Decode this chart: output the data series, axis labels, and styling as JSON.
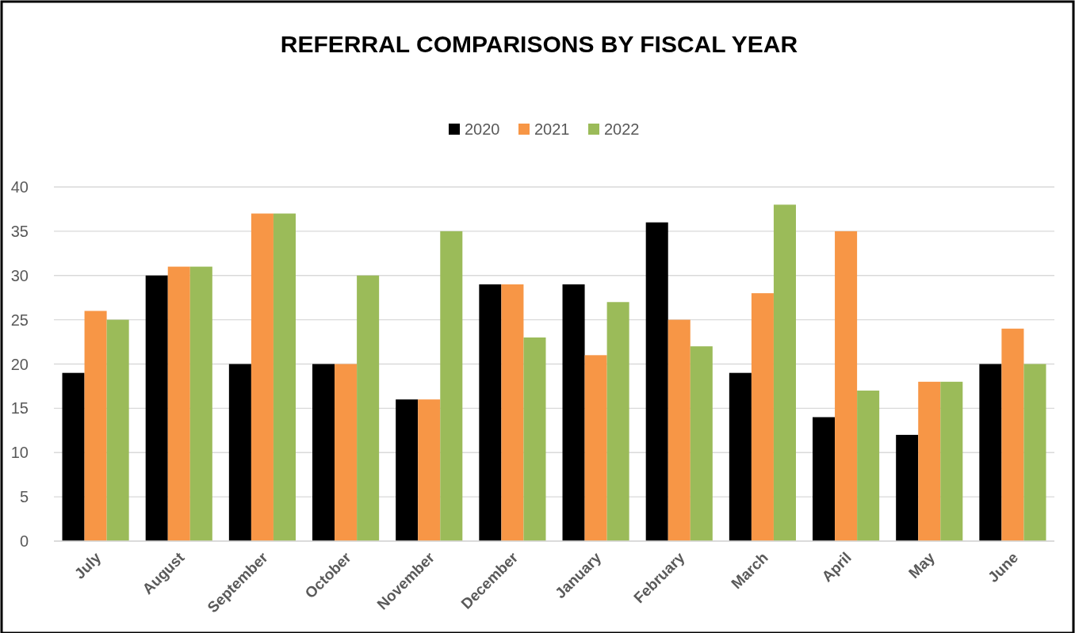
{
  "chart_data": {
    "type": "bar",
    "title": "REFERRAL COMPARISONS BY FISCAL YEAR",
    "categories": [
      "July",
      "August",
      "September",
      "October",
      "November",
      "December",
      "January",
      "February",
      "March",
      "April",
      "May",
      "June"
    ],
    "series": [
      {
        "name": "2020",
        "color": "#000000",
        "values": [
          19,
          30,
          20,
          20,
          16,
          29,
          29,
          36,
          19,
          14,
          12,
          20
        ]
      },
      {
        "name": "2021",
        "color": "#f79646",
        "values": [
          26,
          31,
          37,
          20,
          16,
          29,
          21,
          25,
          28,
          35,
          18,
          24
        ]
      },
      {
        "name": "2022",
        "color": "#9bbb59",
        "values": [
          25,
          31,
          37,
          30,
          35,
          23,
          27,
          22,
          38,
          17,
          18,
          20
        ]
      }
    ],
    "ylim": [
      0,
      40
    ],
    "yticks": [
      0,
      5,
      10,
      15,
      20,
      25,
      30,
      35,
      40
    ],
    "grid": "y",
    "legend": "top"
  }
}
